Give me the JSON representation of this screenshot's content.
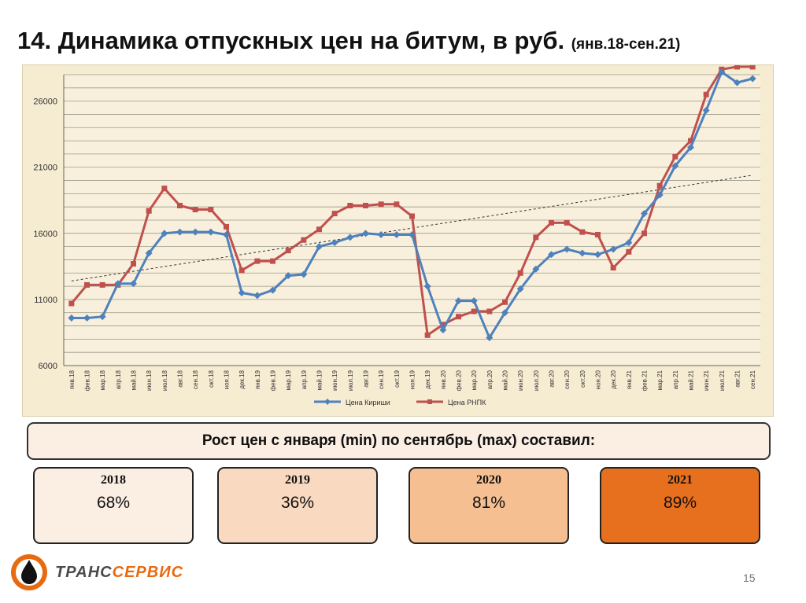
{
  "slide": {
    "title_main": "14. Динамика отпускных цен на битум, в руб.",
    "title_sub": "(янв.18-сен.21)",
    "summary_text": "Рост цен с января (min) по сентябрь (max)  составил:",
    "cards": [
      {
        "year": "2018",
        "value": "68%",
        "color": "#fbeee2"
      },
      {
        "year": "2019",
        "value": "36%",
        "color": "#f9d9bf"
      },
      {
        "year": "2020",
        "value": "81%",
        "color": "#f6bf91"
      },
      {
        "year": "2021",
        "value": "89%",
        "color": "#e6701e"
      }
    ],
    "logo": {
      "prefix": "ТРАНС",
      "accent": "СЕРВИС"
    },
    "page_number": "15"
  },
  "chart_data": {
    "type": "line",
    "ylim": [
      6000,
      28000
    ],
    "y_ticks": [
      "6000",
      "11000",
      "16000",
      "21000",
      "26000"
    ],
    "y_tick_values": [
      6000,
      11000,
      16000,
      21000,
      26000
    ],
    "grid": true,
    "legend_position": "bottom",
    "categories": [
      "янв.18",
      "фев.18",
      "мар.18",
      "апр.18",
      "май.18",
      "июн.18",
      "июл.18",
      "авг.18",
      "сен.18",
      "окт.18",
      "ноя.18",
      "дек.18",
      "янв.19",
      "фев.19",
      "мар.19",
      "апр.19",
      "май.19",
      "июн.19",
      "июл.19",
      "авг.19",
      "сен.19",
      "окт.19",
      "ноя.19",
      "дек.19",
      "янв.20",
      "фев.20",
      "мар.20",
      "апр.20",
      "май.20",
      "июн.20",
      "июл.20",
      "авг.20",
      "сен.20",
      "окт.20",
      "ноя.20",
      "дек.20",
      "янв.21",
      "фев.21",
      "мар.21",
      "апр.21",
      "май.21",
      "июн.21",
      "июл.21",
      "авг.21",
      "сен.21"
    ],
    "series": [
      {
        "name": "Цена Кириши",
        "color": "#4f81bd",
        "values": [
          9600,
          9600,
          9700,
          12200,
          12200,
          14500,
          16000,
          16100,
          16100,
          16100,
          15900,
          11500,
          11300,
          11700,
          12800,
          12900,
          15000,
          15300,
          15700,
          16000,
          15900,
          15900,
          15900,
          12000,
          8700,
          10900,
          10900,
          8100,
          10000,
          11800,
          13300,
          14400,
          14800,
          14500,
          14400,
          14800,
          15300,
          17500,
          18900,
          21100,
          22500,
          25300,
          28200,
          27400,
          27700
        ]
      },
      {
        "name": "Цена РНПК",
        "color": "#c0504d",
        "values": [
          10700,
          12100,
          12100,
          12100,
          13700,
          17700,
          19400,
          18100,
          17800,
          17800,
          16500,
          13200,
          13900,
          13900,
          14700,
          15500,
          16300,
          17500,
          18100,
          18100,
          18200,
          18200,
          17300,
          8300,
          9100,
          9700,
          10100,
          10100,
          10800,
          13000,
          15700,
          16800,
          16800,
          16100,
          15900,
          13400,
          14600,
          16000,
          19600,
          21800,
          23000,
          26500,
          28400,
          28600,
          28600
        ]
      }
    ],
    "trend": {
      "from": 12400,
      "to": 20400
    }
  }
}
